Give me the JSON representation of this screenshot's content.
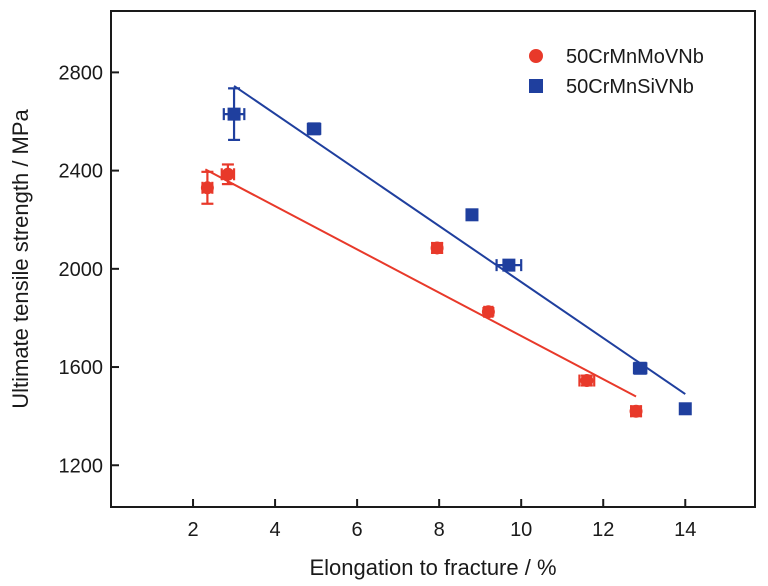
{
  "chart_data": {
    "type": "scatter",
    "title": "",
    "xlabel": "Elongation to fracture / %",
    "ylabel": "Ultimate tensile strength / MPa",
    "xlim": [
      0,
      15.7
    ],
    "ylim": [
      1030,
      3050
    ],
    "xticks": [
      2,
      4,
      6,
      8,
      10,
      12,
      14
    ],
    "yticks": [
      1200,
      1600,
      2000,
      2400,
      2800
    ],
    "grid": false,
    "legend_position": "top-right",
    "series": [
      {
        "name": "50CrMnMoVNb",
        "color": "#e8392a",
        "marker": "circle",
        "points": [
          {
            "x": 2.35,
            "y": 2330,
            "xerr": 0.12,
            "yerr": 65
          },
          {
            "x": 2.85,
            "y": 2385,
            "xerr": 0.15,
            "yerr": 40
          },
          {
            "x": 7.95,
            "y": 2085,
            "xerr": 0.12,
            "yerr": 20
          },
          {
            "x": 9.2,
            "y": 1825,
            "xerr": 0.1,
            "yerr": 15
          },
          {
            "x": 11.6,
            "y": 1545,
            "xerr": 0.18,
            "yerr": 20
          },
          {
            "x": 12.8,
            "y": 1420,
            "xerr": 0.12,
            "yerr": 20
          }
        ],
        "fit": {
          "x": [
            2.3,
            12.8
          ],
          "y": [
            2405,
            1480
          ]
        }
      },
      {
        "name": "50CrMnSiVNb",
        "color": "#1f3f9e",
        "marker": "square",
        "points": [
          {
            "x": 3.0,
            "y": 2630,
            "xerr": 0.25,
            "yerr": 105
          },
          {
            "x": 4.95,
            "y": 2570,
            "xerr": 0.15,
            "yerr": 20
          },
          {
            "x": 8.8,
            "y": 2220,
            "xerr": 0.12,
            "yerr": 20
          },
          {
            "x": 9.7,
            "y": 2015,
            "xerr": 0.3,
            "yerr": 15
          },
          {
            "x": 12.9,
            "y": 1595,
            "xerr": 0.15,
            "yerr": 20
          },
          {
            "x": 14.0,
            "y": 1430,
            "xerr": 0.12,
            "yerr": 20
          }
        ],
        "fit": {
          "x": [
            3.0,
            14.0
          ],
          "y": [
            2745,
            1490
          ]
        }
      }
    ]
  }
}
